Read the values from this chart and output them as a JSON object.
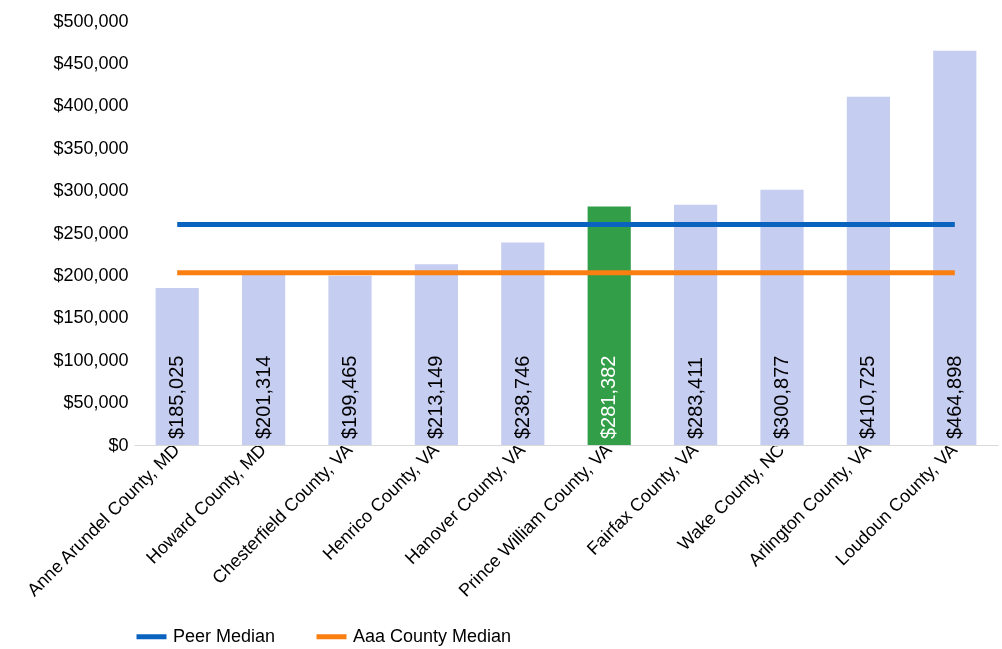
{
  "chart_data": {
    "type": "bar",
    "categories": [
      "Anne Arundel County, MD",
      "Howard County, MD",
      "Chesterfield County, VA",
      "Henrico County, VA",
      "Hanover County, VA",
      "Prince William County, VA",
      "Fairfax County, VA",
      "Wake County, NC",
      "Arlington County, VA",
      "Loudoun County, VA"
    ],
    "values": [
      185025,
      201314,
      199465,
      213149,
      238746,
      281382,
      283411,
      300877,
      410725,
      464898
    ],
    "value_labels": [
      "$185,025",
      "$201,314",
      "$199,465",
      "$213,149",
      "$238,746",
      "$281,382",
      "$283,411",
      "$300,877",
      "$410,725",
      "$464,898"
    ],
    "colors": [
      "#c5cdf1",
      "#c5cdf1",
      "#c5cdf1",
      "#c5cdf1",
      "#c5cdf1",
      "#339e48",
      "#c5cdf1",
      "#c5cdf1",
      "#c5cdf1",
      "#c5cdf1"
    ],
    "series": [
      {
        "name": "Peer Median",
        "type": "line",
        "color": "#0b63c0",
        "values": [
          260000,
          260000,
          260000,
          260000,
          260000,
          260000,
          260000,
          260000,
          260000,
          260000
        ]
      },
      {
        "name": "Aaa County Median",
        "type": "line",
        "color": "#fa7f10",
        "values": [
          203000,
          203000,
          203000,
          203000,
          203000,
          203000,
          203000,
          203000,
          203000,
          203000
        ]
      }
    ],
    "ylim": [
      0,
      500000
    ],
    "yticks": [
      {
        "value": 0,
        "label": "$0"
      },
      {
        "value": 50000,
        "label": "$50,000"
      },
      {
        "value": 100000,
        "label": "$100,000"
      },
      {
        "value": 150000,
        "label": "$150,000"
      },
      {
        "value": 200000,
        "label": "$200,000"
      },
      {
        "value": 250000,
        "label": "$250,000"
      },
      {
        "value": 300000,
        "label": "$300,000"
      },
      {
        "value": 350000,
        "label": "$350,000"
      },
      {
        "value": 400000,
        "label": "$400,000"
      },
      {
        "value": 450000,
        "label": "$450,000"
      },
      {
        "value": 500000,
        "label": "$500,000"
      }
    ],
    "grid": false,
    "legend": "bottom"
  }
}
